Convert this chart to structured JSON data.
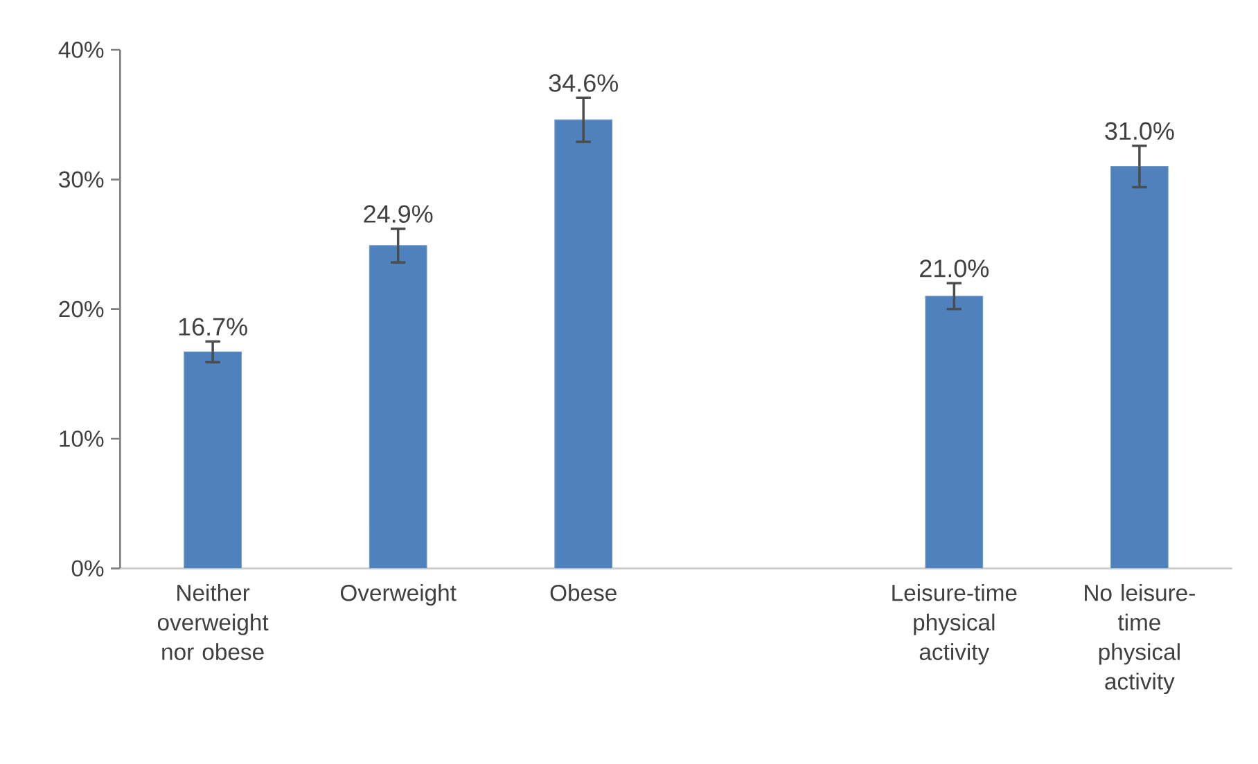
{
  "chart_data": {
    "type": "bar",
    "categories": [
      "Neither overweight nor obese",
      "Overweight",
      "Obese",
      null,
      "Leisure-time physical activity",
      "No leisure-time physical activity"
    ],
    "values": [
      16.7,
      24.9,
      34.6,
      null,
      21.0,
      31.0
    ],
    "errors": [
      0.8,
      1.3,
      1.7,
      null,
      1.0,
      1.6
    ],
    "value_labels": [
      "16.7%",
      "24.9%",
      "34.6%",
      null,
      "21.0%",
      "31.0%"
    ],
    "color": "#4f81bd",
    "ylim": [
      0,
      40
    ],
    "yticks": [
      {
        "value": 0,
        "label": "0%"
      },
      {
        "value": 10,
        "label": "10%"
      },
      {
        "value": 20,
        "label": "20%"
      },
      {
        "value": 30,
        "label": "30%"
      },
      {
        "value": 40,
        "label": "40%"
      }
    ],
    "grid": false
  }
}
